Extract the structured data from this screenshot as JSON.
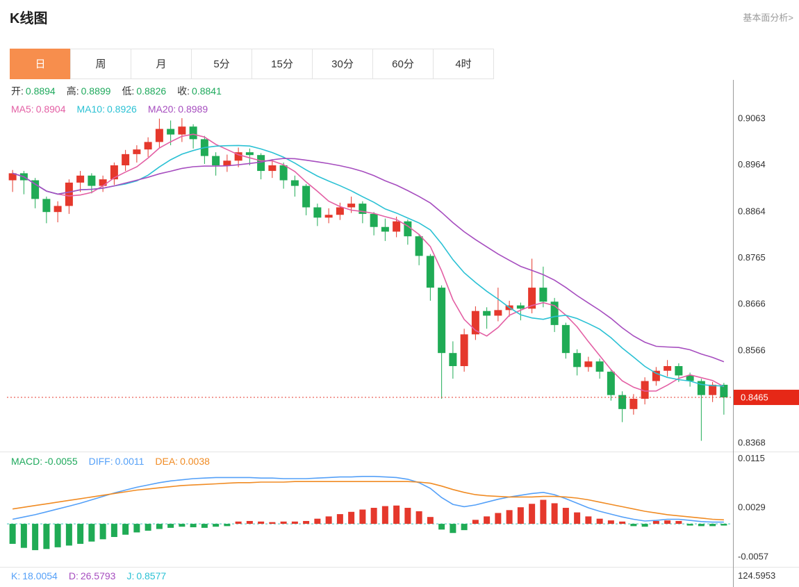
{
  "header": {
    "title": "K线图",
    "link": "基本面分析>"
  },
  "tabs": {
    "items": [
      "日",
      "周",
      "月",
      "5分",
      "15分",
      "30分",
      "60分",
      "4时"
    ],
    "active_index": 0
  },
  "info": {
    "ohlc": [
      {
        "label": "开:",
        "value": "0.8894"
      },
      {
        "label": "高:",
        "value": "0.8899"
      },
      {
        "label": "低:",
        "value": "0.8826"
      },
      {
        "label": "收:",
        "value": "0.8841"
      }
    ],
    "ma": [
      {
        "label": "MA5:",
        "value": "0.8904",
        "color": "#e35fa4"
      },
      {
        "label": "MA10:",
        "value": "0.8926",
        "color": "#2ac1d4"
      },
      {
        "label": "MA20:",
        "value": "0.8989",
        "color": "#a64dbf"
      }
    ],
    "macd": [
      {
        "label": "MACD:",
        "value": "-0.0055",
        "color": "#1ea95c"
      },
      {
        "label": "DIFF:",
        "value": "0.0011",
        "color": "#54a0f8"
      },
      {
        "label": "DEA:",
        "value": "0.0038",
        "color": "#f08b23"
      }
    ],
    "kdj": [
      {
        "label": "K:",
        "value": "18.0054",
        "color": "#54a0f8"
      },
      {
        "label": "D:",
        "value": "26.5793",
        "color": "#a64dbf"
      },
      {
        "label": "J:",
        "value": "0.8577",
        "color": "#2ac1d4"
      }
    ]
  },
  "chart_data": {
    "type": "candlestick",
    "title": "K线图 daily candlestick with MA5/MA10/MA20, MACD panel and KDJ panel",
    "ylim": [
      0.8349,
      0.9145
    ],
    "price_axis_labels": [
      "0.9063",
      "0.8964",
      "0.8864",
      "0.8765",
      "0.8666",
      "0.8566",
      "0.8368"
    ],
    "current_price": "0.8465",
    "ma_periods": [
      5,
      10,
      20
    ],
    "colors": {
      "up": "#e5382c",
      "down": "#1fab55",
      "ma5": "#e35fa4",
      "ma10": "#2ac1d4",
      "ma20": "#a64dbf",
      "diff": "#54a0f8",
      "dea": "#f08b23",
      "price_line": "#e5382c",
      "badge": "#e62817",
      "zero_line": "#3bc6bd"
    },
    "candles": [
      [
        0.893,
        0.8952,
        0.8905,
        0.8945
      ],
      [
        0.8945,
        0.895,
        0.89,
        0.893
      ],
      [
        0.893,
        0.8935,
        0.887,
        0.889
      ],
      [
        0.889,
        0.8895,
        0.8838,
        0.8862
      ],
      [
        0.8862,
        0.8885,
        0.884,
        0.8875
      ],
      [
        0.8875,
        0.8932,
        0.8858,
        0.8925
      ],
      [
        0.8925,
        0.895,
        0.8905,
        0.894
      ],
      [
        0.894,
        0.8945,
        0.8902,
        0.8918
      ],
      [
        0.8918,
        0.894,
        0.8905,
        0.8932
      ],
      [
        0.8932,
        0.8968,
        0.892,
        0.8962
      ],
      [
        0.8962,
        0.8995,
        0.895,
        0.8986
      ],
      [
        0.8986,
        0.9005,
        0.8968,
        0.8996
      ],
      [
        0.8996,
        0.9022,
        0.898,
        0.9012
      ],
      [
        0.9012,
        0.9062,
        0.9,
        0.904
      ],
      [
        0.904,
        0.9058,
        0.9005,
        0.9028
      ],
      [
        0.9028,
        0.9063,
        0.9012,
        0.9045
      ],
      [
        0.9045,
        0.905,
        0.8998,
        0.9018
      ],
      [
        0.9018,
        0.9025,
        0.8965,
        0.8982
      ],
      [
        0.8982,
        0.899,
        0.894,
        0.8962
      ],
      [
        0.8962,
        0.8985,
        0.8948,
        0.8972
      ],
      [
        0.8972,
        0.9,
        0.8958,
        0.899
      ],
      [
        0.899,
        0.8998,
        0.8962,
        0.8984
      ],
      [
        0.8984,
        0.8988,
        0.8932,
        0.895
      ],
      [
        0.895,
        0.8975,
        0.8935,
        0.8962
      ],
      [
        0.8962,
        0.8968,
        0.8912,
        0.893
      ],
      [
        0.893,
        0.894,
        0.8895,
        0.8918
      ],
      [
        0.8918,
        0.8922,
        0.8855,
        0.8872
      ],
      [
        0.8872,
        0.888,
        0.8832,
        0.885
      ],
      [
        0.885,
        0.887,
        0.8838,
        0.8856
      ],
      [
        0.8856,
        0.8882,
        0.8845,
        0.8872
      ],
      [
        0.8872,
        0.8895,
        0.886,
        0.888
      ],
      [
        0.888,
        0.8885,
        0.8838,
        0.8858
      ],
      [
        0.8858,
        0.8862,
        0.8812,
        0.883
      ],
      [
        0.883,
        0.8848,
        0.88,
        0.882
      ],
      [
        0.882,
        0.8852,
        0.8808,
        0.8842
      ],
      [
        0.8842,
        0.8846,
        0.8792,
        0.881
      ],
      [
        0.881,
        0.8815,
        0.8748,
        0.8768
      ],
      [
        0.8768,
        0.8772,
        0.8672,
        0.87
      ],
      [
        0.87,
        0.8705,
        0.8462,
        0.856
      ],
      [
        0.856,
        0.8585,
        0.8505,
        0.8532
      ],
      [
        0.8532,
        0.8612,
        0.852,
        0.86
      ],
      [
        0.86,
        0.866,
        0.8588,
        0.865
      ],
      [
        0.865,
        0.8658,
        0.8612,
        0.864
      ],
      [
        0.864,
        0.87,
        0.8628,
        0.8652
      ],
      [
        0.8652,
        0.8672,
        0.8638,
        0.8662
      ],
      [
        0.8662,
        0.8668,
        0.863,
        0.8655
      ],
      [
        0.8655,
        0.8762,
        0.8645,
        0.87
      ],
      [
        0.87,
        0.8745,
        0.8658,
        0.867
      ],
      [
        0.867,
        0.8678,
        0.8605,
        0.862
      ],
      [
        0.862,
        0.8625,
        0.8548,
        0.856
      ],
      [
        0.856,
        0.8568,
        0.8512,
        0.853
      ],
      [
        0.853,
        0.8552,
        0.852,
        0.8542
      ],
      [
        0.8542,
        0.8548,
        0.8505,
        0.852
      ],
      [
        0.852,
        0.8525,
        0.8458,
        0.847
      ],
      [
        0.847,
        0.8478,
        0.8412,
        0.844
      ],
      [
        0.844,
        0.8472,
        0.8428,
        0.8462
      ],
      [
        0.8462,
        0.8508,
        0.845,
        0.85
      ],
      [
        0.85,
        0.853,
        0.849,
        0.8522
      ],
      [
        0.8522,
        0.8545,
        0.851,
        0.8532
      ],
      [
        0.8532,
        0.8538,
        0.8498,
        0.8512
      ],
      [
        0.8512,
        0.8518,
        0.8488,
        0.85
      ],
      [
        0.85,
        0.8505,
        0.8372,
        0.847
      ],
      [
        0.847,
        0.8498,
        0.8455,
        0.8492
      ],
      [
        0.8492,
        0.8496,
        0.8428,
        0.8465
      ]
    ],
    "macd": {
      "axis_labels": [
        "0.0115",
        "0.0029",
        "-0.0057"
      ],
      "ylim": [
        -0.0074,
        0.0124
      ],
      "hist": [
        -0.0035,
        -0.0042,
        -0.0046,
        -0.0044,
        -0.0041,
        -0.0038,
        -0.0035,
        -0.0031,
        -0.0027,
        -0.0023,
        -0.0019,
        -0.0015,
        -0.0012,
        -0.0009,
        -0.0007,
        -0.0005,
        -0.0006,
        -0.0007,
        -0.0005,
        -0.0004,
        0.0004,
        0.0005,
        0.0004,
        0.0003,
        0.0004,
        0.0004,
        0.0005,
        0.0009,
        0.0013,
        0.0017,
        0.0021,
        0.0025,
        0.0028,
        0.0031,
        0.0032,
        0.0028,
        0.0022,
        0.0012,
        -0.001,
        -0.0016,
        -0.0011,
        0.0007,
        0.0013,
        0.0019,
        0.0024,
        0.0029,
        0.0035,
        0.0042,
        0.0036,
        0.0028,
        0.002,
        0.0013,
        0.0009,
        0.0006,
        0.0004,
        -0.0004,
        -0.0005,
        0.0005,
        0.0006,
        0.0005,
        -0.0003,
        -0.0004,
        -0.0004,
        -0.0003
      ],
      "diff": [
        0.0008,
        0.0012,
        0.0016,
        0.0021,
        0.0026,
        0.0031,
        0.0036,
        0.0042,
        0.0048,
        0.0054,
        0.0059,
        0.0064,
        0.0068,
        0.0072,
        0.0075,
        0.0077,
        0.0079,
        0.008,
        0.0081,
        0.0081,
        0.0081,
        0.0081,
        0.008,
        0.008,
        0.0079,
        0.0079,
        0.0079,
        0.008,
        0.0081,
        0.0082,
        0.0082,
        0.0083,
        0.0083,
        0.0082,
        0.0081,
        0.0078,
        0.0072,
        0.0062,
        0.0046,
        0.0034,
        0.003,
        0.0033,
        0.0038,
        0.0043,
        0.0047,
        0.005,
        0.0053,
        0.0055,
        0.0051,
        0.0044,
        0.0036,
        0.0028,
        0.0022,
        0.0017,
        0.0012,
        0.0008,
        0.0005,
        0.0006,
        0.0008,
        0.0008,
        0.0006,
        0.0004,
        0.0003,
        0.0003
      ],
      "dea": [
        0.0026,
        0.0029,
        0.0032,
        0.0035,
        0.0038,
        0.0041,
        0.0044,
        0.0047,
        0.005,
        0.0053,
        0.0056,
        0.0059,
        0.0061,
        0.0063,
        0.0065,
        0.0067,
        0.0068,
        0.0069,
        0.007,
        0.0071,
        0.0072,
        0.0072,
        0.0073,
        0.0073,
        0.0073,
        0.0074,
        0.0074,
        0.0074,
        0.0074,
        0.0074,
        0.0074,
        0.0074,
        0.0074,
        0.0074,
        0.0074,
        0.0074,
        0.0073,
        0.0071,
        0.0066,
        0.006,
        0.0055,
        0.0051,
        0.0049,
        0.0048,
        0.0047,
        0.0047,
        0.0047,
        0.0048,
        0.0048,
        0.0047,
        0.0045,
        0.0042,
        0.0038,
        0.0034,
        0.003,
        0.0026,
        0.0022,
        0.0019,
        0.0016,
        0.0014,
        0.0012,
        0.001,
        0.0008,
        0.0007
      ]
    },
    "kdj_axis_label": "124.5953"
  }
}
